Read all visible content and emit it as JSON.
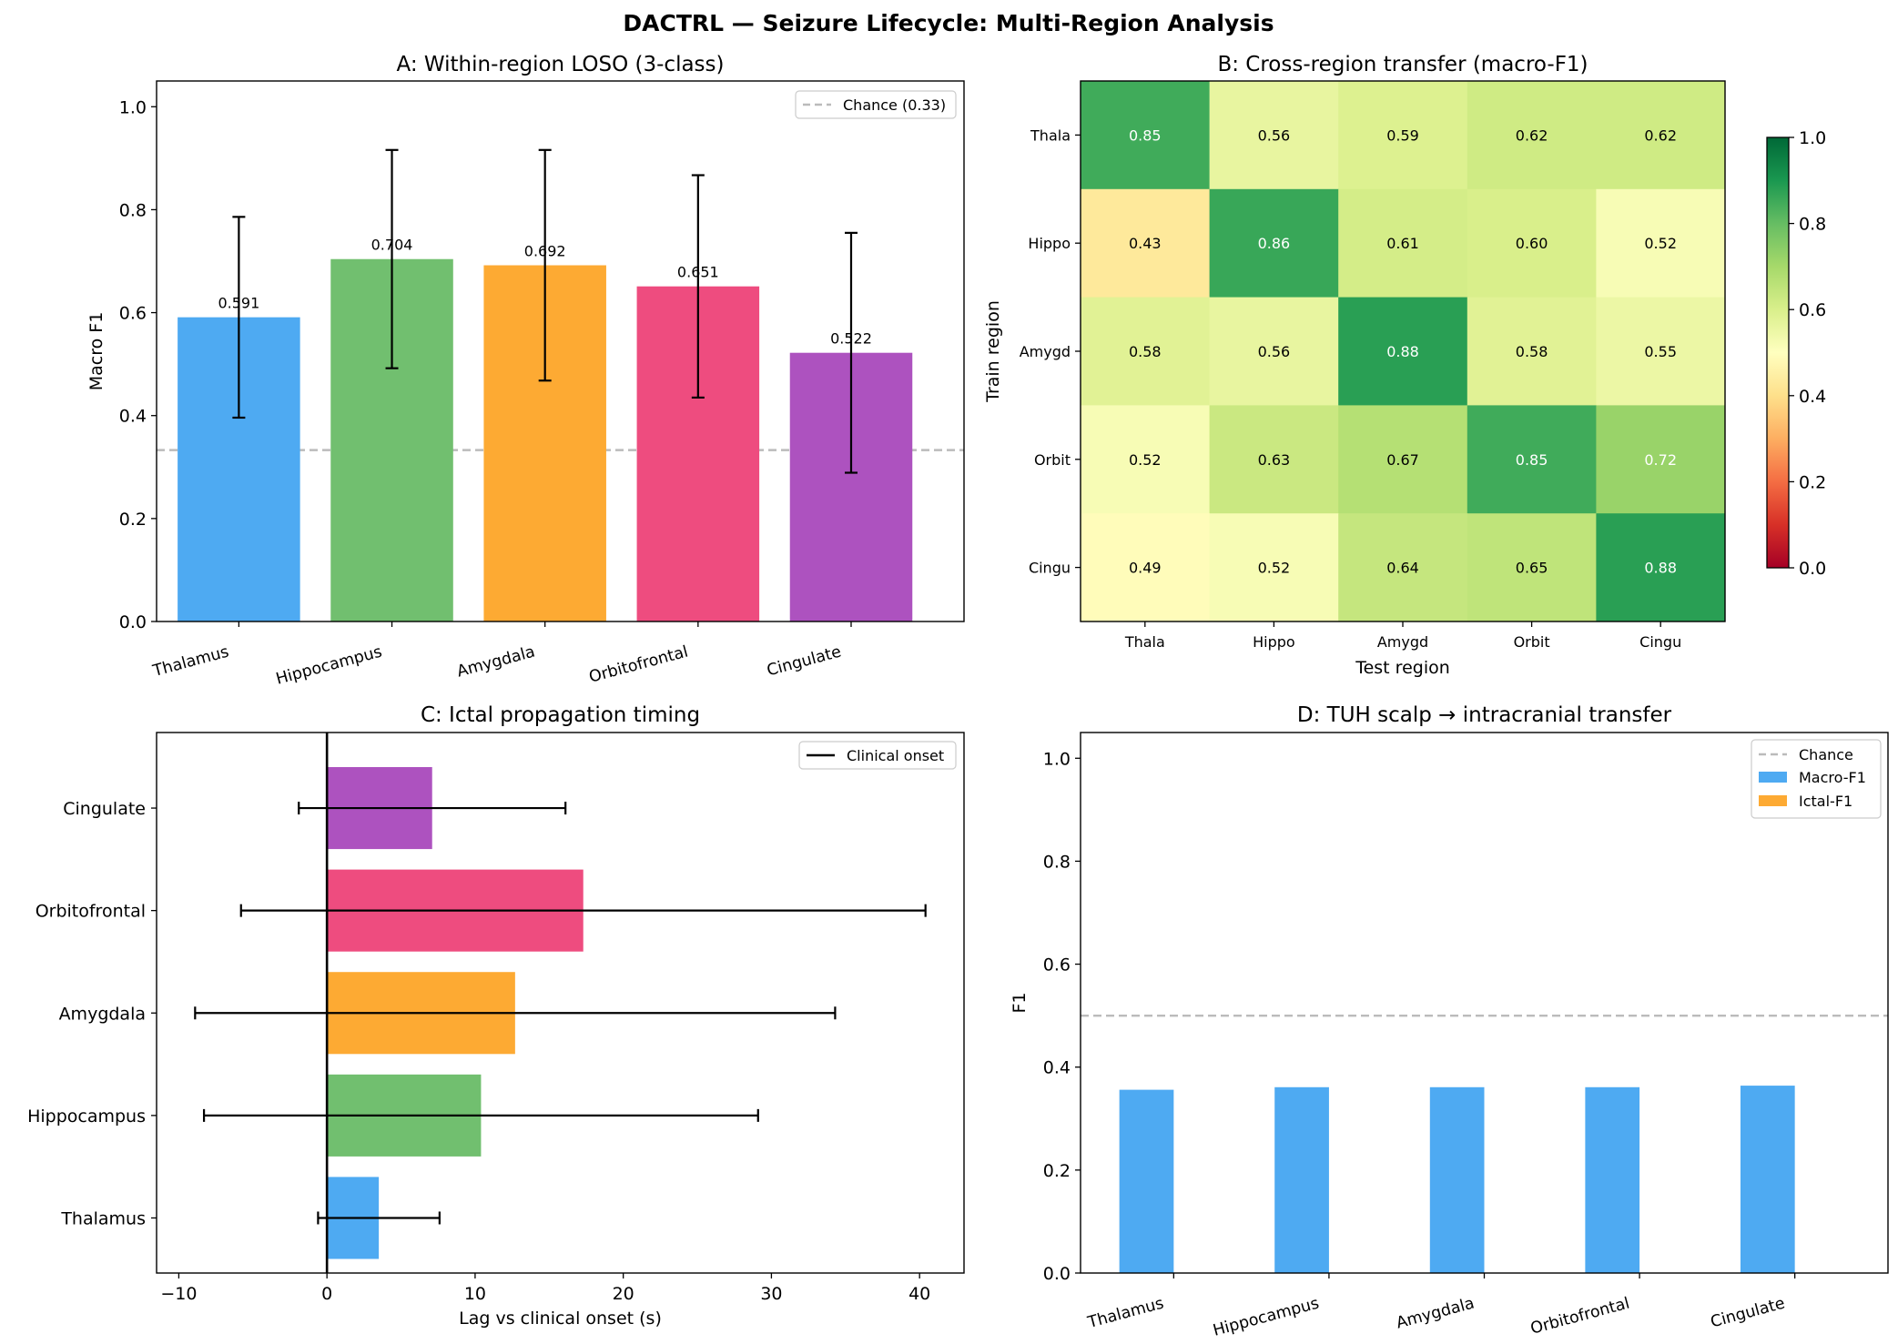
{
  "suptitle": "DACTRL — Seizure Lifecycle: Multi-Region Analysis",
  "colors": {
    "regions": [
      "#4eaaf2",
      "#71bf6f",
      "#fdaa33",
      "#ee4c7f",
      "#ad52bf"
    ],
    "chance_line": "#bbbbbb",
    "errorbar": "#000000",
    "macro": "#4eaaf2",
    "ictal": "#fdaa33"
  },
  "chart_data": [
    {
      "id": "A",
      "type": "bar",
      "title": "A: Within-region LOSO (3-class)",
      "xlabel": "",
      "ylabel": "Macro F1",
      "categories": [
        "Thalamus",
        "Hippocampus",
        "Amygdala",
        "Orbitofrontal",
        "Cingulate"
      ],
      "values": [
        0.591,
        0.704,
        0.692,
        0.651,
        0.522
      ],
      "value_labels": [
        "0.591",
        "0.704",
        "0.692",
        "0.651",
        "0.522"
      ],
      "error": [
        0.195,
        0.212,
        0.224,
        0.216,
        0.233
      ],
      "ylim": [
        0,
        1.05
      ],
      "yticks": [
        0.0,
        0.2,
        0.4,
        0.6,
        0.8,
        1.0
      ],
      "ytick_labels": [
        "0.0",
        "0.2",
        "0.4",
        "0.6",
        "0.8",
        "1.0"
      ],
      "reference_line": 0.333,
      "legend": [
        "Chance (0.33)"
      ],
      "legend_loc": "top-right"
    },
    {
      "id": "B",
      "type": "heatmap",
      "title": "B: Cross-region transfer (macro-F1)",
      "xlabel": "Test region",
      "ylabel": "Train region",
      "rows": [
        "Thala",
        "Hippo",
        "Amygd",
        "Orbit",
        "Cingu"
      ],
      "cols": [
        "Thala",
        "Hippo",
        "Amygd",
        "Orbit",
        "Cingu"
      ],
      "values": [
        [
          0.85,
          0.56,
          0.59,
          0.62,
          0.62
        ],
        [
          0.43,
          0.86,
          0.61,
          0.6,
          0.52
        ],
        [
          0.58,
          0.56,
          0.88,
          0.58,
          0.55
        ],
        [
          0.52,
          0.63,
          0.67,
          0.85,
          0.72
        ],
        [
          0.49,
          0.52,
          0.64,
          0.65,
          0.88
        ]
      ],
      "cell_labels": [
        [
          "0.85",
          "0.56",
          "0.59",
          "0.62",
          "0.62"
        ],
        [
          "0.43",
          "0.86",
          "0.61",
          "0.60",
          "0.52"
        ],
        [
          "0.58",
          "0.56",
          "0.88",
          "0.58",
          "0.55"
        ],
        [
          "0.52",
          "0.63",
          "0.67",
          "0.85",
          "0.72"
        ],
        [
          "0.49",
          "0.52",
          "0.64",
          "0.65",
          "0.88"
        ]
      ],
      "colormap": "RdYlGn",
      "vlim": [
        0,
        1
      ],
      "colorbar_ticks": [
        0.0,
        0.2,
        0.4,
        0.6,
        0.8,
        1.0
      ],
      "colorbar_tick_labels": [
        "0.0",
        "0.2",
        "0.4",
        "0.6",
        "0.8",
        "1.0"
      ]
    },
    {
      "id": "C",
      "type": "bar",
      "orientation": "horizontal",
      "title": "C: Ictal propagation timing",
      "xlabel": "Lag vs clinical onset (s)",
      "ylabel": "",
      "categories": [
        "Thalamus",
        "Hippocampus",
        "Amygdala",
        "Orbitofrontal",
        "Cingulate"
      ],
      "values": [
        3.5,
        10.4,
        12.7,
        17.3,
        7.1
      ],
      "error": [
        4.1,
        18.7,
        21.6,
        23.1,
        9.0
      ],
      "xlim": [
        -11.5,
        43
      ],
      "xticks": [
        -10,
        0,
        10,
        20,
        30,
        40
      ],
      "xtick_labels": [
        "−10",
        "0",
        "10",
        "20",
        "30",
        "40"
      ],
      "reference_line": 0,
      "legend": [
        "Clinical onset"
      ],
      "legend_loc": "top-right"
    },
    {
      "id": "D",
      "type": "bar",
      "title": "D: TUH scalp → intracranial transfer",
      "xlabel": "",
      "ylabel": "F1",
      "categories": [
        "Thalamus",
        "Hippocampus",
        "Amygdala",
        "Orbitofrontal",
        "Cingulate"
      ],
      "series": [
        {
          "name": "Macro-F1",
          "values": [
            0.356,
            0.361,
            0.361,
            0.361,
            0.364
          ]
        },
        {
          "name": "Ictal-F1",
          "values": [
            0,
            0,
            0,
            0,
            0
          ]
        }
      ],
      "ylim": [
        0,
        1.05
      ],
      "yticks": [
        0.0,
        0.2,
        0.4,
        0.6,
        0.8,
        1.0
      ],
      "ytick_labels": [
        "0.0",
        "0.2",
        "0.4",
        "0.6",
        "0.8",
        "1.0"
      ],
      "reference_line": 0.5,
      "legend": [
        "Chance",
        "Macro-F1",
        "Ictal-F1"
      ],
      "legend_loc": "top-right"
    }
  ]
}
